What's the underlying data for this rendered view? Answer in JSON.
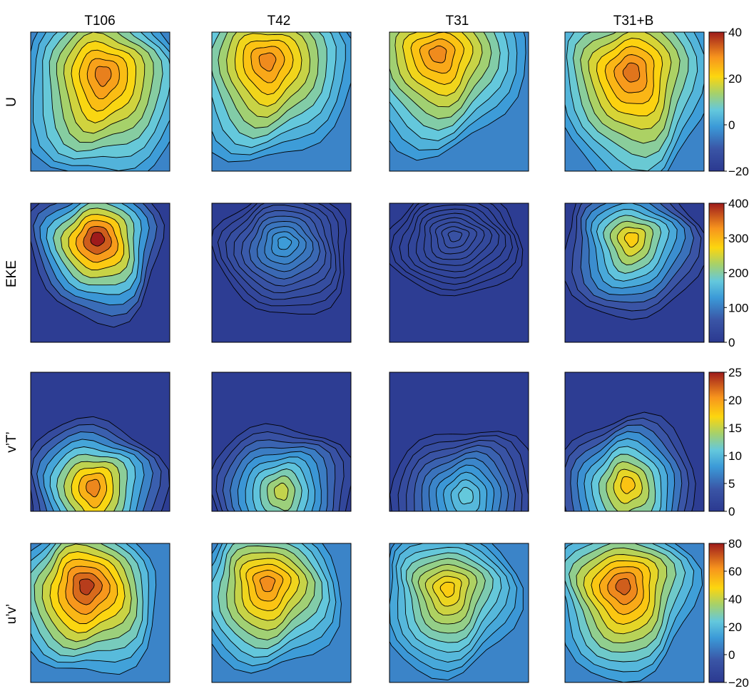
{
  "chart_data": {
    "type": "heatmap",
    "plot_style": "filled-contour",
    "colormap": "jet",
    "grid": false,
    "colorbar_placement": "right",
    "columns": [
      "T106",
      "T42",
      "T31",
      "T31+B"
    ],
    "rows": [
      {
        "label": "U",
        "clim": [
          -20,
          40
        ],
        "ticks": [
          "40",
          "20",
          "0",
          "−20"
        ],
        "panels": [
          {
            "column": "T106",
            "peak": 31
          },
          {
            "column": "T42",
            "peak": 30
          },
          {
            "column": "T31",
            "peak": 30
          },
          {
            "column": "T31+B",
            "peak": 32
          }
        ]
      },
      {
        "label": "EKE",
        "clim": [
          0,
          400
        ],
        "ticks": [
          "400",
          "300",
          "200",
          "100",
          "0"
        ],
        "panels": [
          {
            "column": "T106",
            "peak": 400
          },
          {
            "column": "T42",
            "peak": 130
          },
          {
            "column": "T31",
            "peak": 55
          },
          {
            "column": "T31+B",
            "peak": 280
          }
        ]
      },
      {
        "label": "v’T’",
        "clim": [
          0,
          25
        ],
        "ticks": [
          "25",
          "20",
          "15",
          "10",
          "5",
          "0"
        ],
        "panels": [
          {
            "column": "T106",
            "peak": 21
          },
          {
            "column": "T42",
            "peak": 15
          },
          {
            "column": "T31",
            "peak": 11
          },
          {
            "column": "T31+B",
            "peak": 18
          }
        ]
      },
      {
        "label": "u’v’",
        "clim": [
          -20,
          80
        ],
        "ticks": [
          "80",
          "60",
          "40",
          "20",
          "0",
          "−20"
        ],
        "panels": [
          {
            "column": "T106",
            "peak": 75
          },
          {
            "column": "T42",
            "peak": 63
          },
          {
            "column": "T31",
            "peak": 50
          },
          {
            "column": "T31+B",
            "peak": 70
          }
        ]
      }
    ]
  }
}
